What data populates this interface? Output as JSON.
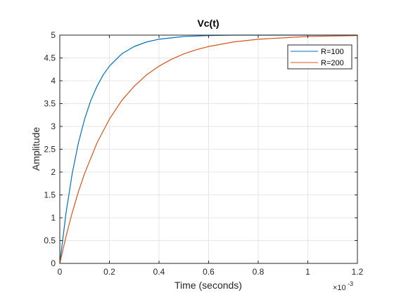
{
  "chart_data": {
    "type": "line",
    "title": "Vc(t)",
    "xlabel": "Time (seconds)",
    "ylabel": "Amplitude",
    "x_multiplier_base": "×10",
    "x_multiplier_exp": "-3",
    "xlim": [
      0,
      1.2
    ],
    "ylim": [
      0,
      5
    ],
    "xticks": [
      0,
      0.2,
      0.4,
      0.6,
      0.8,
      1,
      1.2
    ],
    "xtick_labels": [
      "0",
      "0.2",
      "0.4",
      "0.6",
      "0.8",
      "1",
      "1.2"
    ],
    "yticks": [
      0,
      0.5,
      1,
      1.5,
      2,
      2.5,
      3,
      3.5,
      4,
      4.5,
      5
    ],
    "ytick_labels": [
      "0",
      "0.5",
      "1",
      "1.5",
      "2",
      "2.5",
      "3",
      "3.5",
      "4",
      "4.5",
      "5"
    ],
    "grid": true,
    "legend_position": "top-right",
    "steady_state": 5,
    "series": [
      {
        "name": "R=100",
        "color": "#0072BD",
        "x": [
          0,
          0.025,
          0.05,
          0.075,
          0.1,
          0.125,
          0.15,
          0.175,
          0.2,
          0.25,
          0.3,
          0.35,
          0.4,
          0.45,
          0.5,
          0.55,
          0.6,
          0.7,
          0.8,
          0.9,
          1.0,
          1.1,
          1.2
        ],
        "y": [
          0,
          1.1,
          1.97,
          2.64,
          3.16,
          3.57,
          3.88,
          4.13,
          4.32,
          4.59,
          4.75,
          4.85,
          4.91,
          4.94,
          4.97,
          4.98,
          4.99,
          5.0,
          5.0,
          5.0,
          5.0,
          5.0,
          5.0
        ]
      },
      {
        "name": "R=200",
        "color": "#D95319",
        "x": [
          0,
          0.025,
          0.05,
          0.075,
          0.1,
          0.15,
          0.2,
          0.25,
          0.3,
          0.35,
          0.4,
          0.45,
          0.5,
          0.55,
          0.6,
          0.7,
          0.8,
          0.9,
          1.0,
          1.1,
          1.2
        ],
        "y": [
          0,
          0.59,
          1.11,
          1.57,
          1.97,
          2.64,
          3.16,
          3.57,
          3.88,
          4.13,
          4.32,
          4.47,
          4.59,
          4.68,
          4.75,
          4.85,
          4.91,
          4.94,
          4.97,
          4.98,
          4.99
        ]
      }
    ]
  }
}
